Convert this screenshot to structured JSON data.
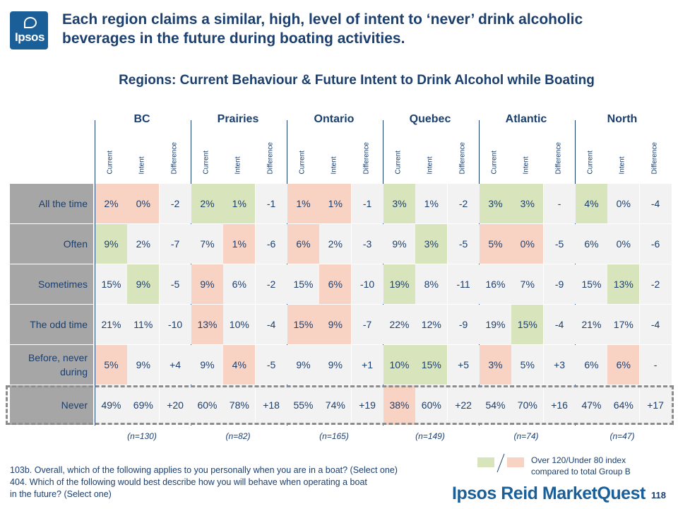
{
  "logo_text": "Ipsos",
  "headline": "Each region claims a similar, high, level of intent to ‘never’ drink alcoholic beverages in the future during boating activities.",
  "subtitle": "Regions: Current Behaviour & Future Intent to Drink Alcohol while Boating",
  "col_labels": [
    "Current",
    "Intent",
    "Difference"
  ],
  "regions": [
    {
      "name": "BC",
      "n": "(n=130)"
    },
    {
      "name": "Prairies",
      "n": "(n=82)"
    },
    {
      "name": "Ontario",
      "n": "(n=165)"
    },
    {
      "name": "Quebec",
      "n": "(n=149)"
    },
    {
      "name": "Atlantic",
      "n": "(n=74)"
    },
    {
      "name": "North",
      "n": "(n=47)"
    }
  ],
  "rows": [
    {
      "label": "All the time",
      "cells": [
        [
          "2%",
          "0%",
          "-2"
        ],
        [
          "2%",
          "1%",
          "-1"
        ],
        [
          "1%",
          "1%",
          "-1"
        ],
        [
          "3%",
          "1%",
          "-2"
        ],
        [
          "3%",
          "3%",
          "-"
        ],
        [
          "4%",
          "0%",
          "-4"
        ]
      ],
      "shade": [
        [
          "p",
          "p",
          "w"
        ],
        [
          "g",
          "g",
          "w"
        ],
        [
          "p",
          "p",
          "w"
        ],
        [
          "g",
          "w",
          "w"
        ],
        [
          "g",
          "g",
          "w"
        ],
        [
          "g",
          "w",
          "w"
        ]
      ]
    },
    {
      "label": "Often",
      "cells": [
        [
          "9%",
          "2%",
          "-7"
        ],
        [
          "7%",
          "1%",
          "-6"
        ],
        [
          "6%",
          "2%",
          "-3"
        ],
        [
          "9%",
          "3%",
          "-5"
        ],
        [
          "5%",
          "0%",
          "-5"
        ],
        [
          "6%",
          "0%",
          "-6"
        ]
      ],
      "shade": [
        [
          "g",
          "w",
          "w"
        ],
        [
          "w",
          "p",
          "w"
        ],
        [
          "p",
          "w",
          "w"
        ],
        [
          "w",
          "g",
          "w"
        ],
        [
          "p",
          "p",
          "w"
        ],
        [
          "w",
          "w",
          "w"
        ]
      ]
    },
    {
      "label": "Sometimes",
      "cells": [
        [
          "15%",
          "9%",
          "-5"
        ],
        [
          "9%",
          "6%",
          "-2"
        ],
        [
          "15%",
          "6%",
          "-10"
        ],
        [
          "19%",
          "8%",
          "-11"
        ],
        [
          "16%",
          "7%",
          "-9"
        ],
        [
          "15%",
          "13%",
          "-2"
        ]
      ],
      "shade": [
        [
          "w",
          "g",
          "w"
        ],
        [
          "p",
          "w",
          "w"
        ],
        [
          "w",
          "p",
          "w"
        ],
        [
          "g",
          "w",
          "w"
        ],
        [
          "w",
          "w",
          "w"
        ],
        [
          "w",
          "g",
          "w"
        ]
      ]
    },
    {
      "label": "The odd time",
      "cells": [
        [
          "21%",
          "11%",
          "-10"
        ],
        [
          "13%",
          "10%",
          "-4"
        ],
        [
          "15%",
          "9%",
          "-7"
        ],
        [
          "22%",
          "12%",
          "-9"
        ],
        [
          "19%",
          "15%",
          "-4"
        ],
        [
          "21%",
          "17%",
          "-4"
        ]
      ],
      "shade": [
        [
          "w",
          "w",
          "w"
        ],
        [
          "p",
          "w",
          "w"
        ],
        [
          "p",
          "p",
          "w"
        ],
        [
          "w",
          "w",
          "w"
        ],
        [
          "w",
          "g",
          "w"
        ],
        [
          "w",
          "w",
          "w"
        ]
      ]
    },
    {
      "label": "Before, never during",
      "cells": [
        [
          "5%",
          "9%",
          "+4"
        ],
        [
          "9%",
          "4%",
          "-5"
        ],
        [
          "9%",
          "9%",
          "+1"
        ],
        [
          "10%",
          "15%",
          "+5"
        ],
        [
          "3%",
          "5%",
          "+3"
        ],
        [
          "6%",
          "6%",
          "-"
        ]
      ],
      "shade": [
        [
          "p",
          "w",
          "w"
        ],
        [
          "w",
          "p",
          "w"
        ],
        [
          "w",
          "w",
          "w"
        ],
        [
          "g",
          "g",
          "w"
        ],
        [
          "p",
          "w",
          "w"
        ],
        [
          "w",
          "p",
          "w"
        ]
      ]
    },
    {
      "label": "Never",
      "cells": [
        [
          "49%",
          "69%",
          "+20"
        ],
        [
          "60%",
          "78%",
          "+18"
        ],
        [
          "55%",
          "74%",
          "+19"
        ],
        [
          "38%",
          "60%",
          "+22"
        ],
        [
          "54%",
          "70%",
          "+16"
        ],
        [
          "47%",
          "64%",
          "+17"
        ]
      ],
      "shade": [
        [
          "w",
          "w",
          "w"
        ],
        [
          "w",
          "w",
          "w"
        ],
        [
          "w",
          "w",
          "w"
        ],
        [
          "p",
          "w",
          "w"
        ],
        [
          "w",
          "w",
          "w"
        ],
        [
          "w",
          "w",
          "w"
        ]
      ]
    }
  ],
  "legend_text_1": "Over 120/Under 80 index",
  "legend_text_2": "compared to total Group B",
  "footnote_1": "103b. Overall, which of the following applies to you personally when you are in a boat? (Select one)",
  "footnote_2": "404. Which of the following would best describe how you will behave when operating a boat",
  "footnote_3": "in the future? (Select one)",
  "brand_1": "Ipsos Reid ",
  "brand_2": "MarketQuest",
  "page_number": "118",
  "colors": {
    "green": "#d8e4bc",
    "pink": "#f8d3c4",
    "grey": "#f2f2f2",
    "navy": "#1b3f6e",
    "label_bg": "#a6a6a6"
  }
}
